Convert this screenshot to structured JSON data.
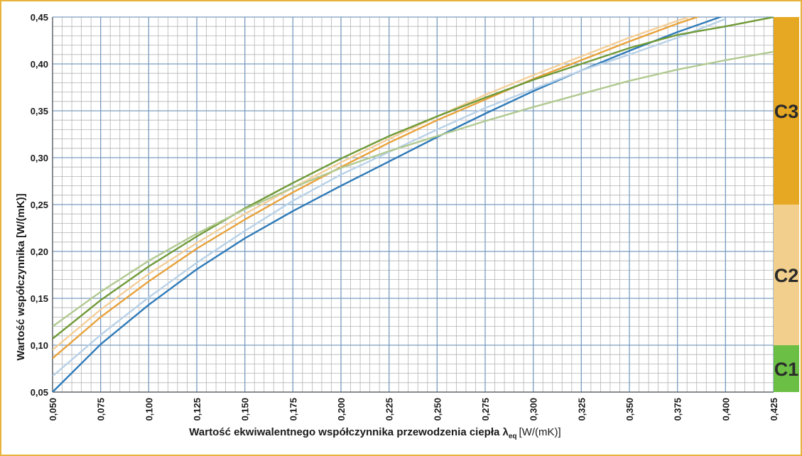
{
  "chart_data": {
    "type": "line",
    "title": "",
    "xlabel": {
      "main": "Wartość ekwiwalentnego  współczynnika przewodzenia ciepła λ",
      "subscript": "eq",
      "unit": "[W/(mK)]"
    },
    "ylabel": "Wartość współczynnika [W/(mK)]",
    "xlim": [
      0.05,
      0.425
    ],
    "ylim": [
      0.05,
      0.45
    ],
    "x_ticks": [
      "0,050",
      "0,075",
      "0,100",
      "0,125",
      "0,150",
      "0,175",
      "0,200",
      "0,225",
      "0,250",
      "0,275",
      "0,300",
      "0,325",
      "0,350",
      "0,375",
      "0,400",
      "0,425"
    ],
    "y_ticks": [
      "0,05",
      "0,10",
      "0,15",
      "0,20",
      "0,25",
      "0,30",
      "0,35",
      "0,40",
      "0,45"
    ],
    "grid": true,
    "legend": "none",
    "classes": [
      {
        "label": "C1",
        "from": 0.05,
        "to": 0.1,
        "color": "#6cbf45"
      },
      {
        "label": "C2",
        "from": 0.1,
        "to": 0.25,
        "color": "#f2cf8c"
      },
      {
        "label": "C3",
        "from": 0.25,
        "to": 0.45,
        "color": "#e6a823"
      }
    ],
    "x": [
      0.05,
      0.075,
      0.1,
      0.125,
      0.15,
      0.175,
      0.2,
      0.225,
      0.25,
      0.275,
      0.3,
      0.325,
      0.35,
      0.375,
      0.4,
      0.425
    ],
    "series": [
      {
        "color": "#2e7ab8",
        "values": [
          0.05,
          0.101,
          0.143,
          0.181,
          0.214,
          0.243,
          0.27,
          0.296,
          0.322,
          0.347,
          0.371,
          0.393,
          0.414,
          0.434,
          0.452,
          null
        ]
      },
      {
        "color": "#b8d1e8",
        "values": [
          0.067,
          0.111,
          0.151,
          0.188,
          0.222,
          0.254,
          0.282,
          0.306,
          0.33,
          0.353,
          0.373,
          0.393,
          0.41,
          0.428,
          0.448,
          null
        ]
      },
      {
        "color": "#e8a23a",
        "values": [
          0.086,
          0.13,
          0.168,
          0.203,
          0.234,
          0.263,
          0.29,
          0.316,
          0.34,
          0.362,
          0.384,
          0.404,
          0.424,
          0.443,
          0.46,
          null
        ]
      },
      {
        "color": "#f4cf98",
        "values": [
          0.095,
          0.138,
          0.176,
          0.209,
          0.24,
          0.268,
          0.295,
          0.32,
          0.344,
          0.367,
          0.388,
          0.408,
          0.428,
          0.446,
          0.463,
          null
        ]
      },
      {
        "color": "#6f9a36",
        "values": [
          0.107,
          0.148,
          0.184,
          0.216,
          0.246,
          0.273,
          0.299,
          0.323,
          0.344,
          0.364,
          0.383,
          0.4,
          0.417,
          0.431,
          0.44,
          0.45
        ]
      },
      {
        "color": "#b1c990",
        "values": [
          0.12,
          0.157,
          0.19,
          0.219,
          0.245,
          0.268,
          0.289,
          0.307,
          0.323,
          0.339,
          0.354,
          0.368,
          0.382,
          0.394,
          0.404,
          0.413
        ]
      }
    ]
  }
}
